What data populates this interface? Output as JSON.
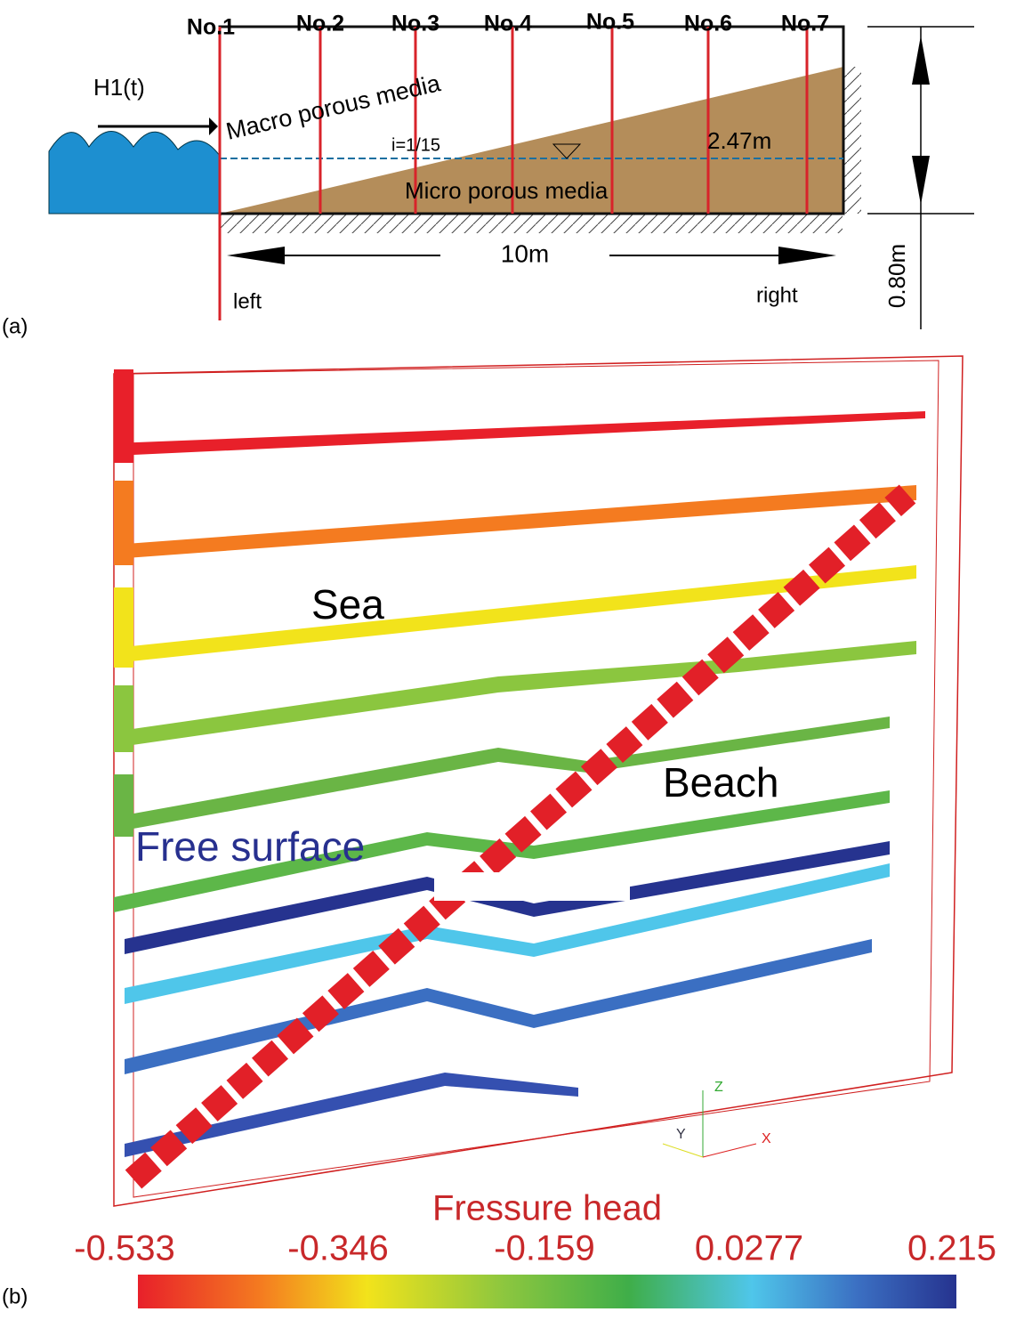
{
  "panel_a": {
    "label": "(a)",
    "probes": [
      "No.1",
      "No.2",
      "No.3",
      "No.4",
      "No.5",
      "No.6",
      "No.7"
    ],
    "wave_label": "H1(t)",
    "upper_layer": "Macro porous media",
    "slope": "i=1/15",
    "depth": "2.47m",
    "lower_layer": "Micro porous media",
    "length": "10m",
    "left": "left",
    "right": "right",
    "height": "0.80m"
  },
  "panel_b": {
    "label": "(b)",
    "sea": "Sea",
    "beach": "Beach",
    "free_surface": "Free surface",
    "axes": {
      "z": "Z",
      "y": "Y",
      "x": "X"
    },
    "colorbar": {
      "title": "Fressure head",
      "ticks": [
        "-0.533",
        "-0.346",
        "-0.159",
        "0.0277",
        "0.215"
      ]
    }
  }
}
